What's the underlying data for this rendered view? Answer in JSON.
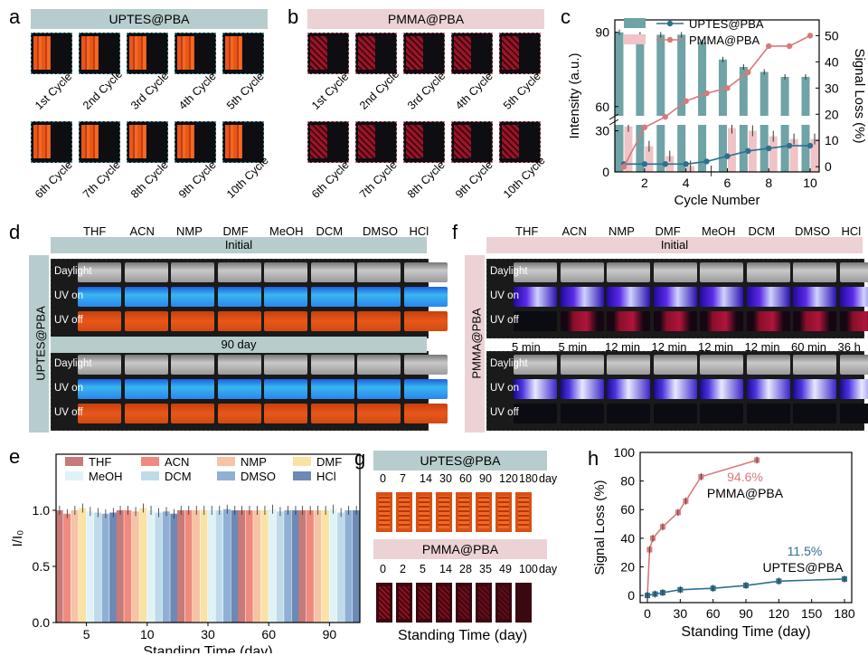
{
  "panels": {
    "a": {
      "letter": "a",
      "banner": "UPTES@PBA",
      "cycles": [
        "1st Cycle",
        "2nd Cycle",
        "3rd Cycle",
        "4th Cycle",
        "5th Cycle",
        "6th Cycle",
        "7th Cycle",
        "8th Cycle",
        "9th Cycle",
        "10th Cycle"
      ]
    },
    "b": {
      "letter": "b",
      "banner": "PMMA@PBA",
      "cycles": [
        "1st Cycle",
        "2nd Cycle",
        "3rd Cycle",
        "4th Cycle",
        "5th Cycle",
        "6th Cycle",
        "7th Cycle",
        "8th Cycle",
        "9th Cycle",
        "10th Cycle"
      ]
    },
    "c": {
      "letter": "c"
    },
    "d": {
      "letter": "d",
      "side": "UPTES@PBA",
      "initial": "Initial",
      "day90": "90 day",
      "solvents": [
        "THF",
        "ACN",
        "NMP",
        "DMF",
        "MeOH",
        "DCM",
        "DMSO",
        "HCl"
      ],
      "rows": [
        "Daylight",
        "UV on",
        "UV off"
      ]
    },
    "e": {
      "letter": "e"
    },
    "f": {
      "letter": "f",
      "side": "PMMA@PBA",
      "initial": "Initial",
      "solvents": [
        "THF",
        "ACN",
        "NMP",
        "DMF",
        "MeOH",
        "DCM",
        "DMSO",
        "HCl"
      ],
      "rows": [
        "Daylight",
        "UV on",
        "UV off"
      ],
      "times": [
        "5 min",
        "5 min",
        "12 min",
        "12 min",
        "12 min",
        "12 min",
        "60 min",
        "36 h"
      ]
    },
    "g": {
      "letter": "g",
      "banner1": "UPTES@PBA",
      "banner2": "PMMA@PBA",
      "days1": [
        "0",
        "7",
        "14",
        "30",
        "60",
        "90",
        "120",
        "180"
      ],
      "days2": [
        "0",
        "2",
        "5",
        "14",
        "28",
        "35",
        "49",
        "100"
      ],
      "unit": "day"
    },
    "h": {
      "letter": "h"
    }
  },
  "colors": {
    "teal": "#5f9ea0",
    "tealdark": "#2f6f8f",
    "rose": "#d9797b",
    "orange": "#e8571a",
    "blue": "#1f6fe0"
  },
  "chart_data": [
    {
      "id": "c",
      "type": "bar",
      "x": [
        1,
        2,
        3,
        4,
        5,
        6,
        7,
        8,
        9,
        10
      ],
      "xlabel": "Cycle Number",
      "ylabel": "Intensity (a.u.)",
      "y2label": "Signal Loss (%)",
      "xticks": [
        "2",
        "4",
        "6",
        "8",
        "10"
      ],
      "yticks": [
        "0",
        "30",
        "60",
        "90"
      ],
      "y2ticks": [
        "0",
        "10",
        "20",
        "30",
        "40",
        "50"
      ],
      "series": [
        {
          "name": "UPTES@PBA",
          "bars": [
            90,
            89,
            89,
            89,
            86,
            79,
            76,
            74,
            72,
            72
          ],
          "line": [
            1,
            1,
            1,
            1,
            2,
            4,
            6,
            7,
            8,
            8
          ]
        },
        {
          "name": "PMMA@PBA",
          "bars": [
            52,
            44,
            40,
            36,
            34,
            32,
            30,
            26,
            24,
            24
          ],
          "line": [
            0,
            15,
            19,
            25,
            28,
            30,
            36,
            46,
            46,
            50
          ]
        }
      ],
      "ylim": [
        0,
        95
      ],
      "y2lim": [
        -2,
        56
      ],
      "axis_break": true
    },
    {
      "id": "e",
      "type": "bar",
      "categories": [
        "5",
        "10",
        "30",
        "60",
        "90"
      ],
      "xlabel": "Standing Time (day)",
      "ylabel": "I/I₀",
      "yticks": [
        "0.0",
        "0.5",
        "1.0"
      ],
      "ylim": [
        0,
        1.5
      ],
      "series": [
        {
          "name": "THF",
          "values": [
            1.0,
            1.0,
            1.0,
            1.0,
            1.0
          ]
        },
        {
          "name": "ACN",
          "values": [
            0.97,
            1.0,
            1.0,
            1.0,
            1.0
          ]
        },
        {
          "name": "NMP",
          "values": [
            1.0,
            0.99,
            1.0,
            1.0,
            1.0
          ]
        },
        {
          "name": "DMF",
          "values": [
            1.02,
            1.02,
            1.0,
            1.0,
            1.0
          ]
        },
        {
          "name": "MeOH",
          "values": [
            0.99,
            1.0,
            1.0,
            1.01,
            1.01
          ]
        },
        {
          "name": "DCM",
          "values": [
            0.98,
            0.98,
            1.0,
            0.99,
            0.98
          ]
        },
        {
          "name": "DMSO",
          "values": [
            0.97,
            0.99,
            1.01,
            1.0,
            1.0
          ]
        },
        {
          "name": "HCl",
          "values": [
            0.98,
            0.97,
            1.0,
            1.0,
            1.0
          ]
        }
      ]
    },
    {
      "id": "h",
      "type": "line",
      "xlabel": "Standing Time (day)",
      "ylabel": "Signal Loss (%)",
      "xticks": [
        "0",
        "30",
        "60",
        "90",
        "120",
        "150",
        "180"
      ],
      "yticks": [
        "0",
        "20",
        "40",
        "60",
        "80",
        "100"
      ],
      "xlim": [
        0,
        180
      ],
      "ylim": [
        -5,
        100
      ],
      "series": [
        {
          "name": "PMMA@PBA",
          "x": [
            0,
            2,
            5,
            14,
            28,
            35,
            49,
            100
          ],
          "y": [
            0,
            32,
            40,
            48,
            58,
            66,
            83,
            94.6
          ],
          "annotation": "94.6%"
        },
        {
          "name": "UPTES@PBA",
          "x": [
            0,
            7,
            14,
            30,
            60,
            90,
            120,
            180
          ],
          "y": [
            0,
            1,
            2,
            4,
            5,
            7,
            10,
            11.5
          ],
          "annotation": "11.5%"
        }
      ]
    }
  ]
}
